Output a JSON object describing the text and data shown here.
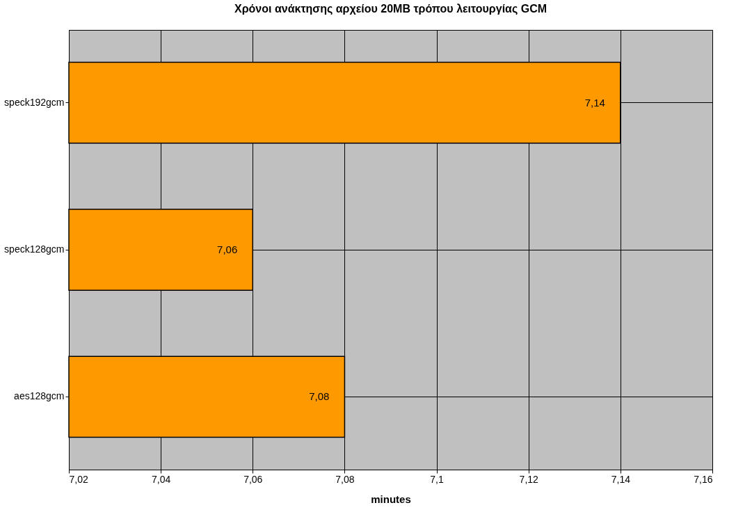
{
  "chart_data": {
    "type": "bar",
    "orientation": "horizontal",
    "title": "Χρόνοι ανάκτησης αρχείου 20MB τρόπου λειτουργίας GCM",
    "xlabel": "minutes",
    "categories": [
      "speck192gcm",
      "speck128gcm",
      "aes128gcm"
    ],
    "values": [
      7.14,
      7.06,
      7.08
    ],
    "value_labels": [
      "7,14",
      "7,06",
      "7,08"
    ],
    "color": "#ff9900",
    "xlim": [
      7.02,
      7.16
    ],
    "xticks": [
      {
        "value": 7.02,
        "label": "7,02"
      },
      {
        "value": 7.04,
        "label": "7,04"
      },
      {
        "value": 7.06,
        "label": "7,06"
      },
      {
        "value": 7.08,
        "label": "7,08"
      },
      {
        "value": 7.1,
        "label": "7,1"
      },
      {
        "value": 7.12,
        "label": "7,12"
      },
      {
        "value": 7.14,
        "label": "7,14"
      },
      {
        "value": 7.16,
        "label": "7,16"
      }
    ],
    "grid": true
  }
}
